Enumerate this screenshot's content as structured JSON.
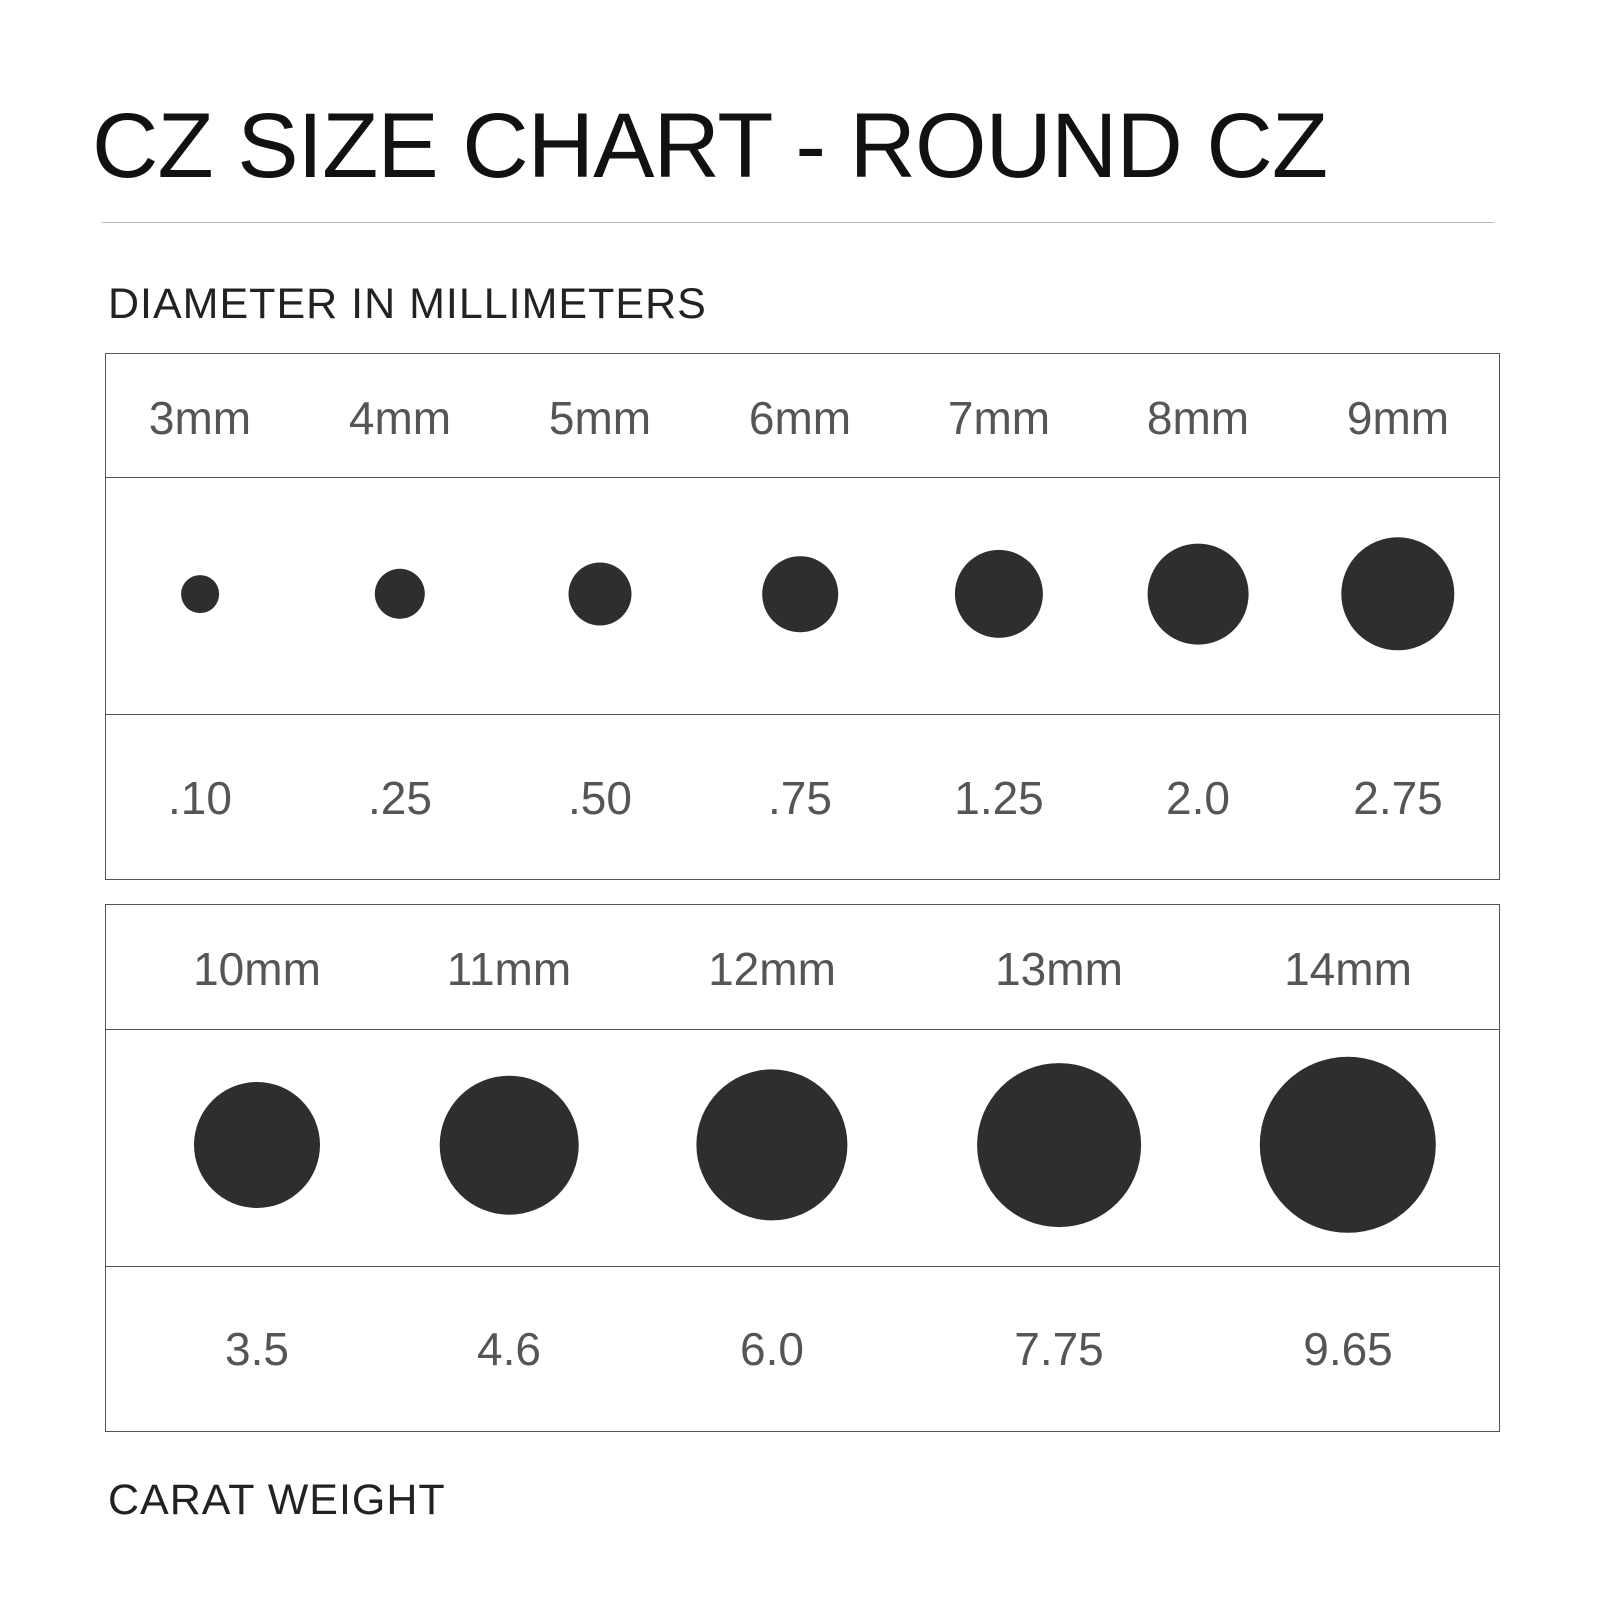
{
  "title": "CZ SIZE CHART - ROUND CZ",
  "diameter_label": "DIAMETER IN MILLIMETERS",
  "carat_label": "CARAT WEIGHT",
  "colors": {
    "stone": "#2e2e2e",
    "label_text": "#555555",
    "border": "#555555"
  },
  "tables": [
    {
      "sizes": [
        {
          "mm": "3mm",
          "diameter": 3,
          "carat": ".10"
        },
        {
          "mm": "4mm",
          "diameter": 4,
          "carat": ".25"
        },
        {
          "mm": "5mm",
          "diameter": 5,
          "carat": ".50"
        },
        {
          "mm": "6mm",
          "diameter": 6,
          "carat": ".75"
        },
        {
          "mm": "7mm",
          "diameter": 7,
          "carat": "1.25"
        },
        {
          "mm": "8mm",
          "diameter": 8,
          "carat": "2.0"
        },
        {
          "mm": "9mm",
          "diameter": 9,
          "carat": "2.75"
        }
      ]
    },
    {
      "sizes": [
        {
          "mm": "10mm",
          "diameter": 10,
          "carat": "3.5"
        },
        {
          "mm": "11mm",
          "diameter": 11,
          "carat": "4.6"
        },
        {
          "mm": "12mm",
          "diameter": 12,
          "carat": "6.0"
        },
        {
          "mm": "13mm",
          "diameter": 13,
          "carat": "7.75"
        },
        {
          "mm": "14mm",
          "diameter": 14,
          "carat": "9.65"
        }
      ]
    }
  ]
}
